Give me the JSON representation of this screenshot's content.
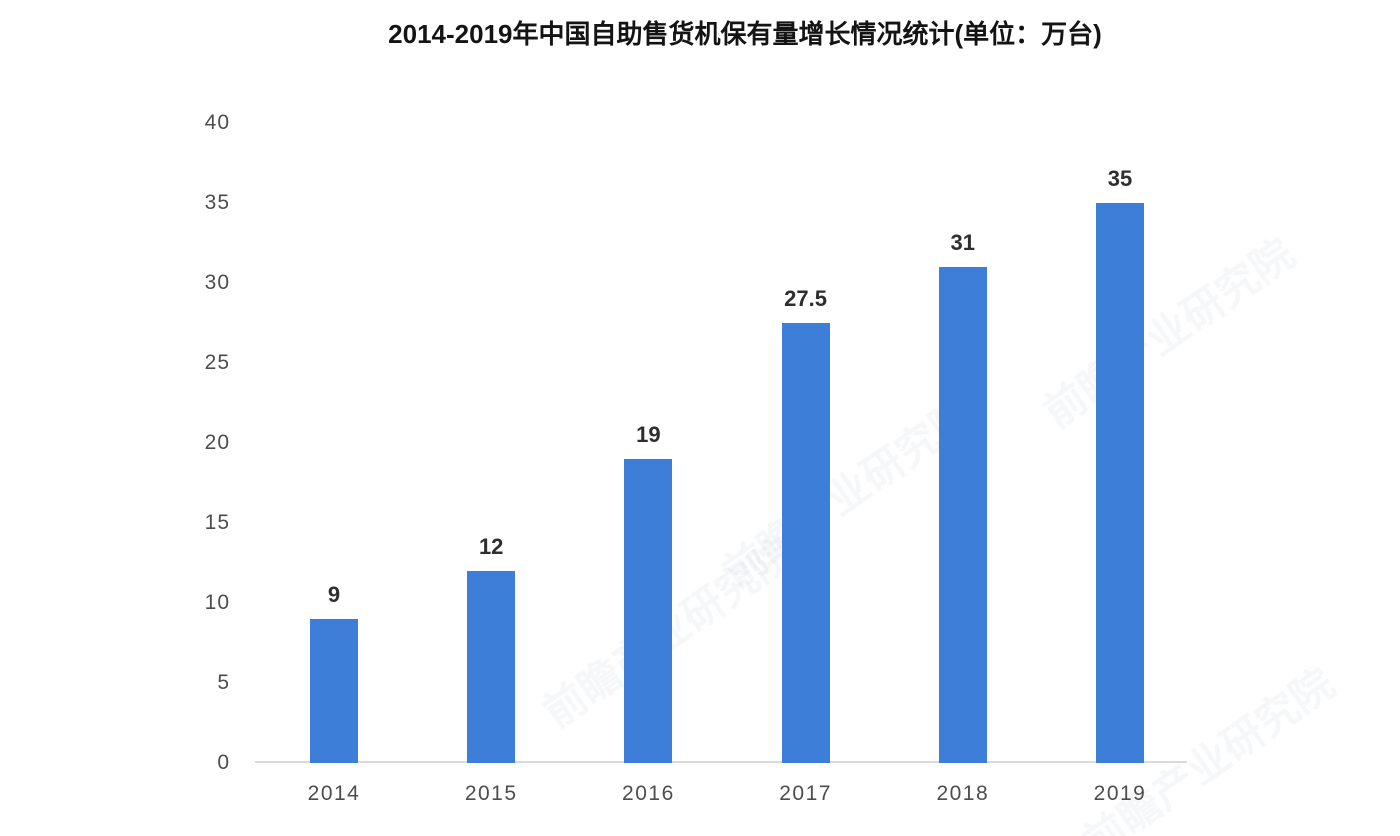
{
  "title": "2014-2019年中国自助售货机保有量增长情况统计(单位：万台)",
  "chart_data": {
    "type": "bar",
    "title": "2014-2019年中国自助售货机保有量增长情况统计(单位：万台)",
    "categories": [
      "2014",
      "2015",
      "2016",
      "2017",
      "2018",
      "2019"
    ],
    "values": [
      9,
      12,
      19,
      27.5,
      31,
      35
    ],
    "value_labels": [
      "9",
      "12",
      "19",
      "27.5",
      "31",
      "35"
    ],
    "xlabel": "",
    "ylabel": "",
    "ylim": [
      0,
      40
    ],
    "yticks": [
      0,
      5,
      10,
      15,
      20,
      25,
      30,
      35,
      40
    ],
    "grid": false,
    "legend_position": "none",
    "bar_color": "#3d7ed9",
    "axis_line_color": "#dadada",
    "tick_label_color": "#4d4d4d",
    "value_label_color": "#2e2e2e",
    "background_color": "#ffffff"
  },
  "watermark": {
    "text": "前瞻产业研究院",
    "color": "#5c7696"
  }
}
